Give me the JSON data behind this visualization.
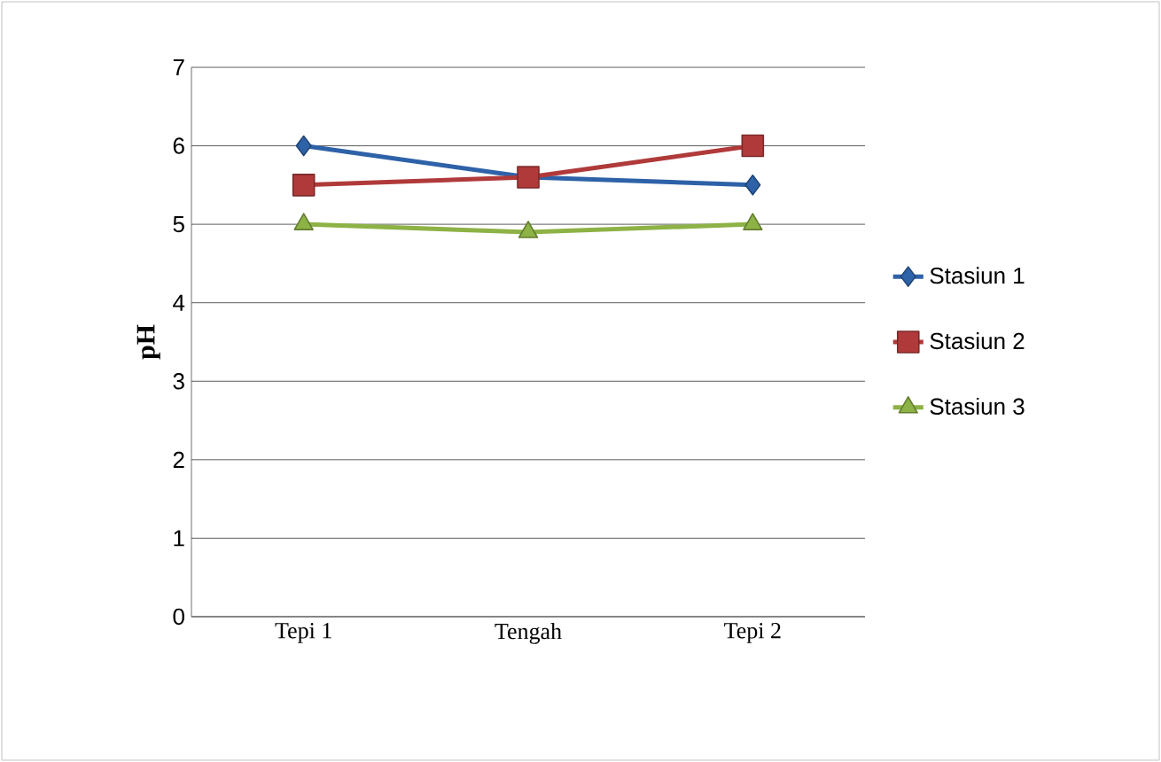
{
  "chart_data": {
    "type": "line",
    "ylabel": "pH",
    "categories": [
      "Tepi 1",
      "Tengah",
      "Tepi 2"
    ],
    "series": [
      {
        "name": "Stasiun 1",
        "color": "#2e62a8",
        "marker": "diamond",
        "values": [
          6,
          5.6,
          5.5
        ]
      },
      {
        "name": "Stasiun 2",
        "color": "#b03a3a",
        "marker": "square",
        "values": [
          5.5,
          5.6,
          6
        ]
      },
      {
        "name": "Stasiun 3",
        "color": "#8db245",
        "marker": "triangle",
        "values": [
          5,
          4.9,
          5
        ]
      }
    ],
    "ylim": [
      0,
      7
    ],
    "yticks": [
      0,
      1,
      2,
      3,
      4,
      5,
      6,
      7
    ],
    "grid": "y",
    "legend": "right"
  }
}
